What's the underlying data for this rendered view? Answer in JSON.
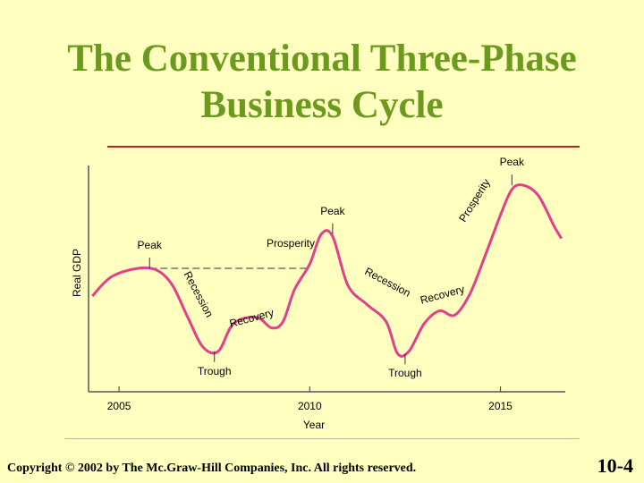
{
  "slide": {
    "title_line1": "The Conventional Three-Phase",
    "title_line2": "Business Cycle",
    "copyright": "Copyright © 2002 by The Mc.Graw-Hill Companies, Inc.  All rights reserved.",
    "slide_number": "10-4",
    "accent_color": "#6b9a1f",
    "rule_color": "#b3262b",
    "background": "#ffffbf"
  },
  "chart_data": {
    "type": "line",
    "title": "",
    "xlabel": "Year",
    "ylabel": "Real GDP",
    "xlim": [
      2004.2,
      2016.7
    ],
    "ylim": [
      0,
      10
    ],
    "xticks": [
      2005,
      2010,
      2015
    ],
    "grid": false,
    "series": [
      {
        "color": "#e0408c",
        "x": [
          2004.3,
          2004.8,
          2005.5,
          2006.0,
          2006.4,
          2006.8,
          2007.2,
          2007.6,
          2008.0,
          2008.6,
          2009.0,
          2009.3,
          2009.6,
          2010.0,
          2010.3,
          2010.6,
          2011.0,
          2011.5,
          2012.0,
          2012.3,
          2012.6,
          2013.0,
          2013.4,
          2013.8,
          2014.2,
          2014.6,
          2015.0,
          2015.3,
          2015.6,
          2016.0,
          2016.4,
          2016.6
        ],
        "values": [
          4.5,
          5.4,
          5.8,
          5.7,
          5.0,
          3.5,
          2.1,
          1.9,
          3.2,
          3.5,
          3.0,
          3.3,
          4.8,
          6.0,
          7.4,
          7.3,
          5.0,
          4.1,
          3.3,
          1.8,
          1.9,
          3.2,
          3.8,
          3.6,
          4.6,
          6.4,
          8.3,
          9.5,
          9.7,
          9.2,
          7.8,
          7.2
        ]
      }
    ],
    "annotations": [
      {
        "text": "Peak",
        "x": 2005.8,
        "y": 5.8
      },
      {
        "text": "Peak",
        "x": 2010.6,
        "y": 7.4
      },
      {
        "text": "Peak",
        "x": 2015.3,
        "y": 9.7
      },
      {
        "text": "Trough",
        "x": 2007.5,
        "y": 1.9
      },
      {
        "text": "Trough",
        "x": 2012.5,
        "y": 1.8
      },
      {
        "text": "Prosperity",
        "x": 2009.5,
        "y": 6.8
      },
      {
        "text": "Prosperity",
        "x": 2014.4,
        "y": 8.9
      },
      {
        "text": "Recession",
        "x": 2007.0,
        "y": 4.5
      },
      {
        "text": "Recession",
        "x": 2012.0,
        "y": 5.0
      },
      {
        "text": "Recovery",
        "x": 2008.5,
        "y": 3.3
      },
      {
        "text": "Recovery",
        "x": 2013.5,
        "y": 4.4
      }
    ],
    "reference_line": {
      "y": 5.8,
      "x_from": 2005.8,
      "x_to": 2009.9,
      "style": "dashed"
    }
  }
}
